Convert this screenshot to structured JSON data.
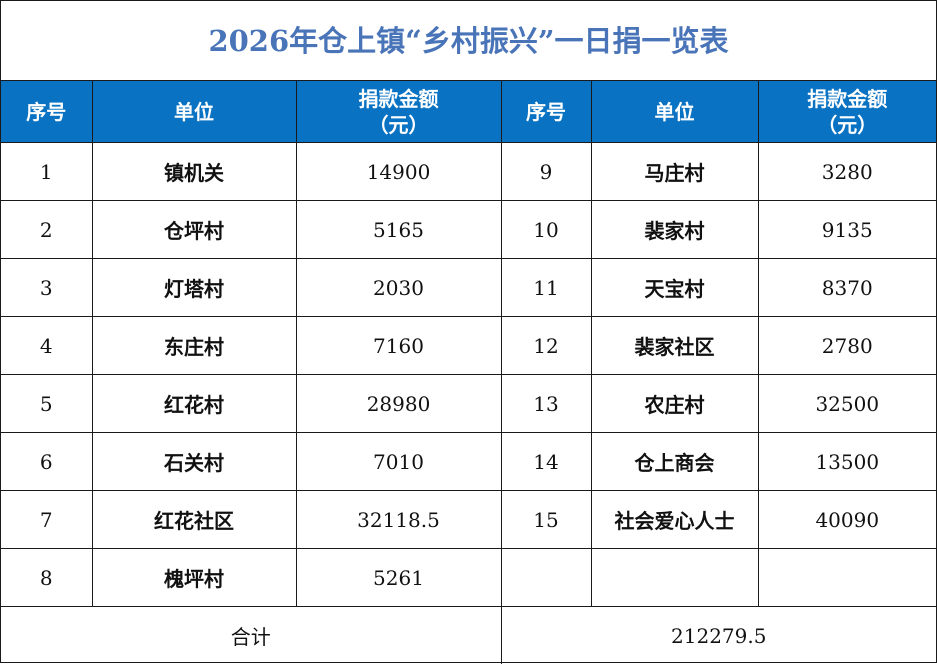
{
  "title": "2026年仓上镇“乡村振兴”一日捐一览表",
  "headers": {
    "seq": "序号",
    "unit": "单位",
    "amount_line1": "捐款金额",
    "amount_line2": "（元）"
  },
  "left_rows": [
    {
      "seq": "1",
      "unit": "镇机关",
      "amount": "14900"
    },
    {
      "seq": "2",
      "unit": "仓坪村",
      "amount": "5165"
    },
    {
      "seq": "3",
      "unit": "灯塔村",
      "amount": "2030"
    },
    {
      "seq": "4",
      "unit": "东庄村",
      "amount": "7160"
    },
    {
      "seq": "5",
      "unit": "红花村",
      "amount": "28980"
    },
    {
      "seq": "6",
      "unit": "石关村",
      "amount": "7010"
    },
    {
      "seq": "7",
      "unit": "红花社区",
      "amount": "32118.5"
    },
    {
      "seq": "8",
      "unit": "槐坪村",
      "amount": "5261"
    }
  ],
  "right_rows": [
    {
      "seq": "9",
      "unit": "马庄村",
      "amount": "3280"
    },
    {
      "seq": "10",
      "unit": "裴家村",
      "amount": "9135"
    },
    {
      "seq": "11",
      "unit": "天宝村",
      "amount": "8370"
    },
    {
      "seq": "12",
      "unit": "裴家社区",
      "amount": "2780"
    },
    {
      "seq": "13",
      "unit": "农庄村",
      "amount": "32500"
    },
    {
      "seq": "14",
      "unit": "仓上商会",
      "amount": "13500"
    },
    {
      "seq": "15",
      "unit": "社会爱心人士",
      "amount": "40090"
    },
    {
      "seq": "",
      "unit": "",
      "amount": ""
    }
  ],
  "total": {
    "label": "合计",
    "value": "212279.5"
  },
  "colors": {
    "title": "#4a74b8",
    "header_bg": "#0a72c2",
    "header_text": "#ffffff"
  }
}
